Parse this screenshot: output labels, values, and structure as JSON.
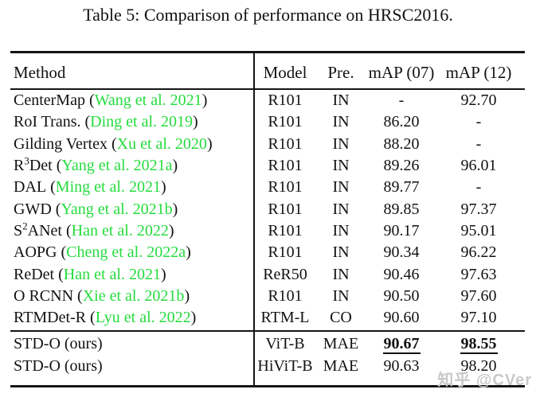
{
  "title": "Table 5: Comparison of performance on HRSC2016.",
  "symbols": {
    "open": "(",
    "close": ")"
  },
  "table": {
    "headers": {
      "method": "Method",
      "model": "Model",
      "pre": "Pre.",
      "map07": "mAP (07)",
      "map12": "mAP (12)"
    },
    "rows": [
      {
        "n1": "CenterMap",
        "sup": "",
        "n2": "",
        "cite": "Wang et al. 2021",
        "model": "R101",
        "pre": "IN",
        "map07": "-",
        "map12": "92.70"
      },
      {
        "n1": "RoI Trans.",
        "sup": "",
        "n2": "",
        "cite": "Ding et al. 2019",
        "model": "R101",
        "pre": "IN",
        "map07": "86.20",
        "map12": "-"
      },
      {
        "n1": "Gilding Vertex",
        "sup": "",
        "n2": "",
        "cite": "Xu et al. 2020",
        "model": "R101",
        "pre": "IN",
        "map07": "88.20",
        "map12": "-"
      },
      {
        "n1": "R",
        "sup": "3",
        "n2": "Det",
        "cite": "Yang et al. 2021a",
        "model": "R101",
        "pre": "IN",
        "map07": "89.26",
        "map12": "96.01"
      },
      {
        "n1": "DAL",
        "sup": "",
        "n2": "",
        "cite": "Ming et al. 2021",
        "model": "R101",
        "pre": "IN",
        "map07": "89.77",
        "map12": "-"
      },
      {
        "n1": "GWD",
        "sup": "",
        "n2": "",
        "cite": "Yang et al. 2021b",
        "model": "R101",
        "pre": "IN",
        "map07": "89.85",
        "map12": "97.37"
      },
      {
        "n1": "S",
        "sup": "2",
        "n2": "ANet",
        "cite": "Han et al. 2022",
        "model": "R101",
        "pre": "IN",
        "map07": "90.17",
        "map12": "95.01"
      },
      {
        "n1": "AOPG",
        "sup": "",
        "n2": "",
        "cite": "Cheng et al. 2022a",
        "model": "R101",
        "pre": "IN",
        "map07": "90.34",
        "map12": "96.22"
      },
      {
        "n1": "ReDet",
        "sup": "",
        "n2": "",
        "cite": "Han et al. 2021",
        "model": "ReR50",
        "pre": "IN",
        "map07": "90.46",
        "map12": "97.63"
      },
      {
        "n1": "O RCNN",
        "sup": "",
        "n2": "",
        "cite": "Xie et al. 2021b",
        "model": "R101",
        "pre": "IN",
        "map07": "90.50",
        "map12": "97.60"
      },
      {
        "n1": "RTMDet-R",
        "sup": "",
        "n2": "",
        "cite": "Lyu et al. 2022",
        "model": "RTM-L",
        "pre": "CO",
        "map07": "90.60",
        "map12": "97.10"
      }
    ],
    "ours_rows": [
      {
        "method": "STD-O (ours)",
        "model": "ViT-B",
        "pre": "MAE",
        "map07": "90.67",
        "map12": "98.55"
      },
      {
        "method": "STD-O (ours)",
        "model": "HiViT-B",
        "pre": "MAE",
        "map07": "90.63",
        "map12": "98.20"
      }
    ]
  },
  "watermark": "知乎 @CVer",
  "colors": {
    "citation_green": "#25dc3e",
    "watermark_gray": "#c9c9c9",
    "text": "#121212"
  }
}
